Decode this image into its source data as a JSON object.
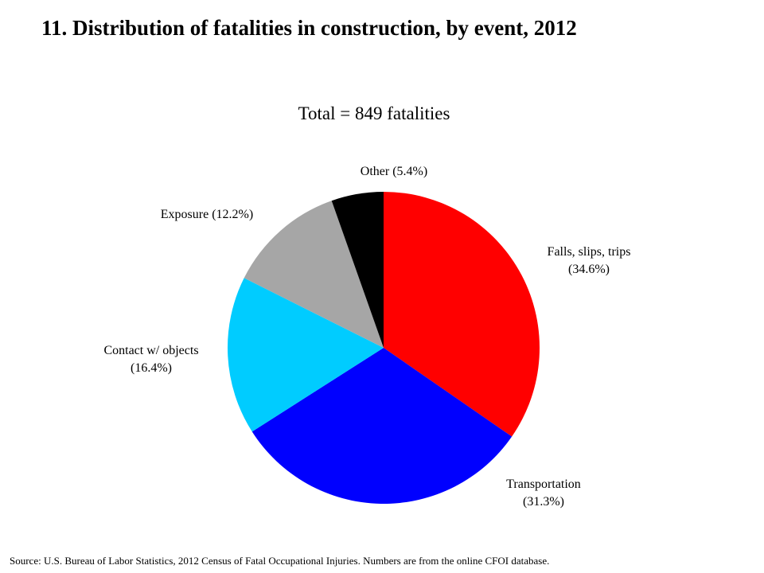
{
  "title": "11. Distribution of fatalities in construction, by event, 2012",
  "source": "Source: U.S. Bureau of Labor Statistics, 2012 Census of Fatal Occupational Injuries. Numbers are from the online CFOI database.",
  "chart_data": {
    "type": "pie",
    "title": "11. Distribution of fatalities in construction, by event, 2012",
    "subtitle": "Total = 849 fatalities",
    "total": 849,
    "slices": [
      {
        "name": "Falls, slips, trips",
        "value": 34.6,
        "label_line1": "Falls, slips, trips",
        "label_line2": "(34.6%)",
        "color": "#ff0000"
      },
      {
        "name": "Transportation",
        "value": 31.3,
        "label_line1": "Transportation",
        "label_line2": "(31.3%)",
        "color": "#0000ff"
      },
      {
        "name": "Contact w/ objects",
        "value": 16.4,
        "label_line1": "Contact w/ objects",
        "label_line2": "(16.4%)",
        "color": "#00ccff"
      },
      {
        "name": "Exposure",
        "value": 12.2,
        "label_line1": "Exposure (12.2%)",
        "label_line2": "",
        "color": "#a6a6a6"
      },
      {
        "name": "Other",
        "value": 5.4,
        "label_line1": "Other (5.4%)",
        "label_line2": "",
        "color": "#000000"
      }
    ],
    "start_angle": "12 o'clock",
    "direction": "clockwise",
    "legend": "none"
  }
}
